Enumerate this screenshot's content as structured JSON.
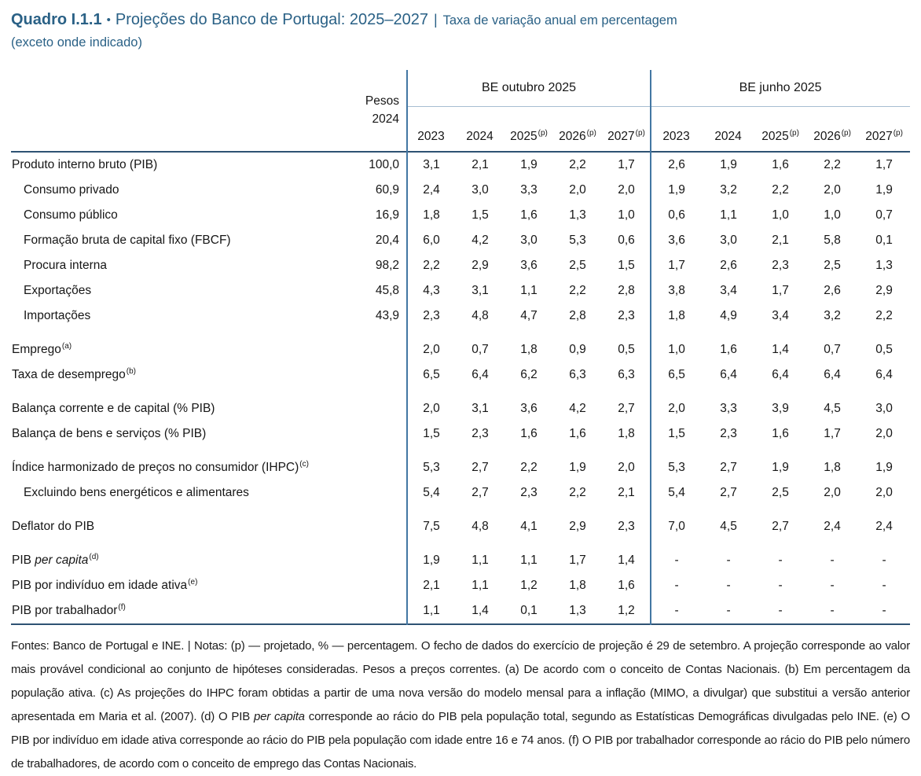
{
  "colors": {
    "title_blue": "#2a6186",
    "rule_dark": "#2e5273",
    "rule_light": "#a6bdd1",
    "rule_vertical": "#4377a3",
    "text": "#1b1b1b"
  },
  "title": {
    "label": "Quadro I.1.1",
    "bullet": "•",
    "main": "Projeções do Banco de Portugal: 2025–2027",
    "pipe": "|",
    "subtitle": "Taxa de variação anual em percentagem",
    "subtitle2": "(exceto onde indicado)"
  },
  "header": {
    "pesos_line1": "Pesos",
    "pesos_line2": "2024",
    "groups": [
      {
        "label": "BE outubro 2025"
      },
      {
        "label": "BE junho 2025"
      }
    ],
    "years": [
      {
        "label": "2023",
        "sup": ""
      },
      {
        "label": "2024",
        "sup": ""
      },
      {
        "label": "2025",
        "sup": "(p)"
      },
      {
        "label": "2026",
        "sup": "(p)"
      },
      {
        "label": "2027",
        "sup": "(p)"
      },
      {
        "label": "2023",
        "sup": ""
      },
      {
        "label": "2024",
        "sup": ""
      },
      {
        "label": "2025",
        "sup": "(p)"
      },
      {
        "label": "2026",
        "sup": "(p)"
      },
      {
        "label": "2027",
        "sup": "(p)"
      }
    ]
  },
  "rows": [
    {
      "label": "Produto interno bruto (PIB)",
      "italic": "",
      "sup": "",
      "pesos": "100,0",
      "out": [
        "3,1",
        "2,1",
        "1,9",
        "2,2",
        "1,7"
      ],
      "jun": [
        "2,6",
        "1,9",
        "1,6",
        "2,2",
        "1,7"
      ]
    },
    {
      "label": "Consumo privado",
      "italic": "",
      "sup": "",
      "pesos": "60,9",
      "out": [
        "2,4",
        "3,0",
        "3,3",
        "2,0",
        "2,0"
      ],
      "jun": [
        "1,9",
        "3,2",
        "2,2",
        "2,0",
        "1,9"
      ]
    },
    {
      "label": "Consumo público",
      "italic": "",
      "sup": "",
      "pesos": "16,9",
      "out": [
        "1,8",
        "1,5",
        "1,6",
        "1,3",
        "1,0"
      ],
      "jun": [
        "0,6",
        "1,1",
        "1,0",
        "1,0",
        "0,7"
      ]
    },
    {
      "label": "Formação bruta de capital fixo (FBCF)",
      "italic": "",
      "sup": "",
      "pesos": "20,4",
      "out": [
        "6,0",
        "4,2",
        "3,0",
        "5,3",
        "0,6"
      ],
      "jun": [
        "3,6",
        "3,0",
        "2,1",
        "5,8",
        "0,1"
      ]
    },
    {
      "label": "Procura interna",
      "italic": "",
      "sup": "",
      "pesos": "98,2",
      "out": [
        "2,2",
        "2,9",
        "3,6",
        "2,5",
        "1,5"
      ],
      "jun": [
        "1,7",
        "2,6",
        "2,3",
        "2,5",
        "1,3"
      ]
    },
    {
      "label": "Exportações",
      "italic": "",
      "sup": "",
      "pesos": "45,8",
      "out": [
        "4,3",
        "3,1",
        "1,1",
        "2,2",
        "2,8"
      ],
      "jun": [
        "3,8",
        "3,4",
        "1,7",
        "2,6",
        "2,9"
      ]
    },
    {
      "label": "Importações",
      "italic": "",
      "sup": "",
      "pesos": "43,9",
      "out": [
        "2,3",
        "4,8",
        "4,7",
        "2,8",
        "2,3"
      ],
      "jun": [
        "1,8",
        "4,9",
        "3,4",
        "3,2",
        "2,2"
      ]
    },
    {
      "label": "Emprego",
      "italic": "",
      "sup": "(a)",
      "pesos": "",
      "out": [
        "2,0",
        "0,7",
        "1,8",
        "0,9",
        "0,5"
      ],
      "jun": [
        "1,0",
        "1,6",
        "1,4",
        "0,7",
        "0,5"
      ]
    },
    {
      "label": "Taxa de desemprego",
      "italic": "",
      "sup": "(b)",
      "pesos": "",
      "out": [
        "6,5",
        "6,4",
        "6,2",
        "6,3",
        "6,3"
      ],
      "jun": [
        "6,5",
        "6,4",
        "6,4",
        "6,4",
        "6,4"
      ]
    },
    {
      "label": "Balança corrente e de capital (% PIB)",
      "italic": "",
      "sup": "",
      "pesos": "",
      "out": [
        "2,0",
        "3,1",
        "3,6",
        "4,2",
        "2,7"
      ],
      "jun": [
        "2,0",
        "3,3",
        "3,9",
        "4,5",
        "3,0"
      ]
    },
    {
      "label": "Balança de bens e serviços (% PIB)",
      "italic": "",
      "sup": "",
      "pesos": "",
      "out": [
        "1,5",
        "2,3",
        "1,6",
        "1,6",
        "1,8"
      ],
      "jun": [
        "1,5",
        "2,3",
        "1,6",
        "1,7",
        "2,0"
      ]
    },
    {
      "label": "Índice harmonizado de preços no consumidor (IHPC)",
      "italic": "",
      "sup": "(c)",
      "pesos": "",
      "out": [
        "5,3",
        "2,7",
        "2,2",
        "1,9",
        "2,0"
      ],
      "jun": [
        "5,3",
        "2,7",
        "1,9",
        "1,8",
        "1,9"
      ]
    },
    {
      "label": "Excluindo bens energéticos e alimentares",
      "italic": "",
      "sup": "",
      "pesos": "",
      "out": [
        "5,4",
        "2,7",
        "2,3",
        "2,2",
        "2,1"
      ],
      "jun": [
        "5,4",
        "2,7",
        "2,5",
        "2,0",
        "2,0"
      ]
    },
    {
      "label": "Deflator do PIB",
      "italic": "",
      "sup": "",
      "pesos": "",
      "out": [
        "7,5",
        "4,8",
        "4,1",
        "2,9",
        "2,3"
      ],
      "jun": [
        "7,0",
        "4,5",
        "2,7",
        "2,4",
        "2,4"
      ]
    },
    {
      "label": "PIB ",
      "italic": "per capita",
      "sup": "(d)",
      "pesos": "",
      "out": [
        "1,9",
        "1,1",
        "1,1",
        "1,7",
        "1,4"
      ],
      "jun": [
        "-",
        "-",
        "-",
        "-",
        "-"
      ]
    },
    {
      "label": "PIB por indivíduo em idade ativa",
      "italic": "",
      "sup": "(e)",
      "pesos": "",
      "out": [
        "2,1",
        "1,1",
        "1,2",
        "1,8",
        "1,6"
      ],
      "jun": [
        "-",
        "-",
        "-",
        "-",
        "-"
      ]
    },
    {
      "label": "PIB por trabalhador",
      "italic": "",
      "sup": "(f)",
      "pesos": "",
      "out": [
        "1,1",
        "1,4",
        "0,1",
        "1,3",
        "1,2"
      ],
      "jun": [
        "-",
        "-",
        "-",
        "-",
        "-"
      ]
    }
  ],
  "footnote": {
    "part1": "Fontes: Banco de Portugal e INE.  |  Notas: (p) — projetado, % — percentagem. O fecho de dados do exercício de projeção é 29 de setembro. A projeção corresponde ao valor mais provável condicional ao conjunto de hipóteses consideradas. Pesos a preços correntes. (a) De acordo com o conceito de Contas Nacionais. (b) Em percentagem da população ativa. (c) As projeções do IHPC foram obtidas a partir de uma nova versão do modelo mensal para a inflação (MIMO, a divulgar) que substitui a versão anterior apresentada em Maria et al. (2007). (d) O PIB ",
    "italic": "per capita",
    "part2": " corresponde ao rácio do PIB pela população total, segundo as Estatísticas Demográficas divulgadas pelo INE. (e) O PIB por indivíduo em idade ativa corresponde ao rácio do PIB pela população com idade entre 16 e 74 anos. (f) O PIB por trabalhador corresponde ao rácio do PIB pelo número de trabalhadores, de acordo com o conceito de emprego das Contas Nacionais."
  }
}
